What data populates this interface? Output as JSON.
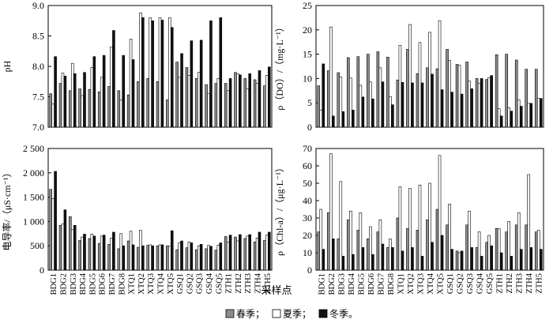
{
  "sites": [
    "BDG1",
    "BDG2",
    "BDG3",
    "BDG4",
    "BDG5",
    "BDG6",
    "BDG7",
    "BDG8",
    "XTQ1",
    "XTQ2",
    "XTQ3",
    "XTQ4",
    "XTQ5",
    "GSQ1",
    "GSQ2",
    "GSQ3",
    "GSQ4",
    "GSQ5",
    "ZTH1",
    "ZTH2",
    "ZTH3",
    "ZTH4",
    "ZTH5"
  ],
  "xlabel": "采样点",
  "legend": [
    {
      "name": "春季；",
      "color": "#8c8c8c"
    },
    {
      "name": "夏季；",
      "color": "#ffffff"
    },
    {
      "name": "冬季。",
      "color": "#111111"
    }
  ],
  "chart_data": [
    {
      "type": "bar",
      "ylabel": "pH",
      "ylim": [
        7.0,
        9.0
      ],
      "yticks": [
        "7.0",
        "7.5",
        "8.0",
        "8.5",
        "9.0"
      ],
      "series": [
        {
          "name": "春季",
          "values": [
            7.55,
            7.72,
            7.6,
            7.63,
            7.62,
            7.58,
            7.67,
            7.6,
            7.53,
            7.75,
            7.8,
            7.75,
            7.45,
            8.07,
            7.98,
            7.8,
            7.7,
            7.72,
            7.72,
            7.9,
            7.8,
            7.78,
            7.68
          ]
        },
        {
          "name": "夏季",
          "values": [
            7.38,
            7.89,
            8.05,
            7.52,
            7.98,
            7.82,
            8.32,
            7.45,
            8.45,
            8.88,
            8.8,
            8.8,
            8.8,
            7.82,
            7.85,
            7.9,
            7.55,
            7.8,
            7.6,
            7.88,
            7.63,
            7.72,
            7.85
          ]
        },
        {
          "name": "冬季",
          "values": [
            8.16,
            7.84,
            7.88,
            7.9,
            8.16,
            8.18,
            8.59,
            8.18,
            8.11,
            8.8,
            8.75,
            8.76,
            8.64,
            8.21,
            8.42,
            8.43,
            8.75,
            8.8,
            7.8,
            7.86,
            7.88,
            7.93,
            7.99
          ]
        }
      ]
    },
    {
      "type": "bar",
      "ylabel": "ρ（DO）/（mg·L⁻¹）",
      "ylim": [
        0,
        25
      ],
      "yticks": [
        "0",
        "5",
        "10",
        "15",
        "20",
        "25"
      ],
      "series": [
        {
          "name": "春季",
          "values": [
            8.5,
            11.6,
            11.2,
            14.3,
            14.5,
            15.0,
            15.5,
            14.4,
            9.7,
            16.0,
            11.0,
            12.2,
            12.0,
            16.0,
            12.9,
            13.4,
            10.0,
            9.8,
            14.9,
            15.0,
            13.8,
            11.9,
            11.9
          ]
        },
        {
          "name": "夏季",
          "values": [
            3.5,
            20.6,
            10.3,
            10.1,
            8.6,
            9.3,
            12.2,
            6.3,
            16.8,
            21.1,
            17.4,
            19.5,
            21.9,
            13.7,
            12.7,
            9.5,
            9.0,
            10.2,
            3.8,
            4.0,
            5.6,
            4.9,
            5.9
          ]
        },
        {
          "name": "冬季",
          "values": [
            13.0,
            2.3,
            3.2,
            3.5,
            6.2,
            5.8,
            9.3,
            4.6,
            9.2,
            9.1,
            9.1,
            10.9,
            7.7,
            7.2,
            6.8,
            7.9,
            10.0,
            10.6,
            2.3,
            3.3,
            4.3,
            4.9,
            5.9
          ]
        }
      ]
    },
    {
      "type": "bar",
      "ylabel": "电导率/（μS·cm⁻¹）",
      "ylim": [
        0,
        2500
      ],
      "yticks": [
        "0",
        "500",
        "1 000",
        "1 500",
        "2 000",
        "2 500"
      ],
      "series": [
        {
          "name": "春季",
          "values": [
            1660,
            920,
            1100,
            610,
            650,
            550,
            530,
            440,
            600,
            470,
            510,
            500,
            500,
            420,
            460,
            420,
            440,
            410,
            690,
            680,
            650,
            580,
            610
          ]
        },
        {
          "name": "夏季",
          "values": [
            1470,
            950,
            830,
            680,
            740,
            700,
            660,
            750,
            800,
            820,
            520,
            520,
            490,
            560,
            580,
            500,
            510,
            510,
            580,
            600,
            700,
            660,
            720
          ]
        },
        {
          "name": "冬季",
          "values": [
            2030,
            1240,
            920,
            740,
            700,
            720,
            780,
            500,
            520,
            500,
            500,
            520,
            810,
            600,
            560,
            530,
            490,
            560,
            720,
            730,
            730,
            780,
            780
          ]
        }
      ]
    },
    {
      "type": "bar",
      "ylabel": "ρ（Chl-a）/（μg·L⁻¹）",
      "ylim": [
        0,
        70
      ],
      "yticks": [
        "0",
        "10",
        "20",
        "30",
        "40",
        "50",
        "60",
        "70"
      ],
      "series": [
        {
          "name": "春季",
          "values": [
            22,
            33,
            18,
            29,
            23,
            18,
            22,
            13,
            30,
            24,
            23,
            29,
            35,
            26,
            11,
            26,
            13,
            16,
            24,
            22,
            26,
            26,
            22
          ]
        },
        {
          "name": "夏季",
          "values": [
            35,
            67,
            51,
            34,
            33,
            25,
            29,
            18,
            48,
            47,
            49,
            50,
            66,
            38,
            10,
            34,
            22,
            20,
            24,
            28,
            33,
            55,
            23
          ]
        },
        {
          "name": "冬季",
          "values": [
            12,
            18,
            8,
            9,
            13,
            9,
            15,
            13,
            11,
            13,
            8,
            16,
            20,
            12,
            11,
            13,
            8,
            14,
            10,
            8,
            12,
            13,
            12
          ]
        }
      ]
    }
  ]
}
